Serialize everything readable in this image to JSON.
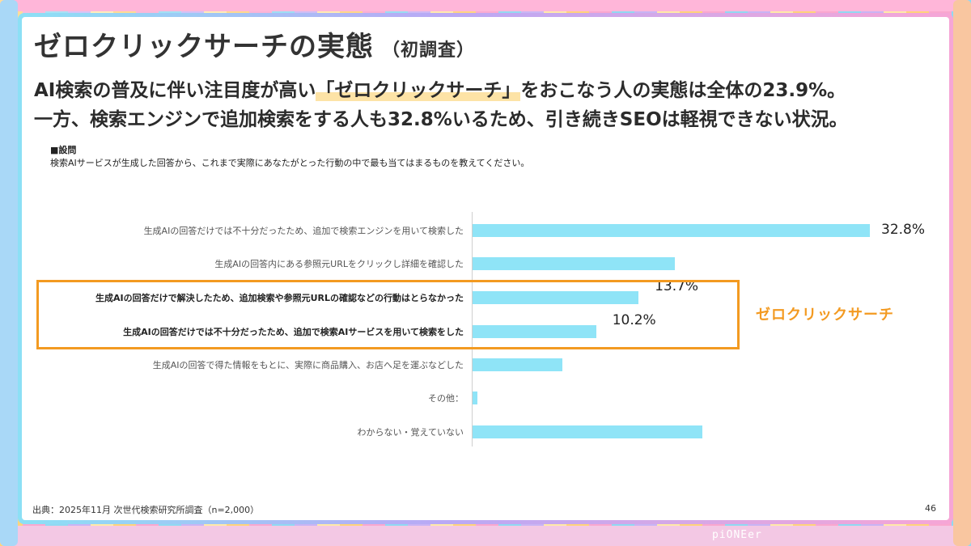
{
  "slide": {
    "title": "ゼロクリックサーチの実態",
    "title_sub": "（初調査）",
    "lead_line1_pre": "AI検索の普及に伴い注目度が高い",
    "lead_line1_highlight": "「ゼロクリックサーチ」",
    "lead_line1_post": "をおこなう人の実態は全体の23.9%。",
    "lead_line2": "一方、検索エンジンで追加検索をする人も32.8%いるため、引き続きSEOは軽視できない状況。",
    "question_heading": "■設問",
    "question_text": "検索AIサービスが生成した回答から、これまで実際にあなたがとった行動の中で最も当てはまるものを教えてください。",
    "source": "出典：2025年11月 次世代検索研究所調査（n=2,000）",
    "page_number": "46",
    "brand": "piONEer"
  },
  "colors": {
    "bar": "#8fe4f7",
    "highlight_box": "#f39a21",
    "highlight_marker": "#fde3a6"
  },
  "chart_data": {
    "type": "bar",
    "orientation": "horizontal",
    "categories": [
      "生成AIの回答だけでは不十分だったため、追加で検索エンジンを用いて検索した",
      "生成AIの回答内にある参照元URLをクリックし詳細を確認した",
      "生成AIの回答だけで解決したため、追加検索や参照元URLの確認などの行動はとらなかった",
      "生成AIの回答だけでは不十分だったため、追加で検索AIサービスを用いて検索をした",
      "生成AIの回答で得た情報をもとに、実際に商品購入、お店へ足を運ぶなどした",
      "その他：",
      "わからない・覚えていない"
    ],
    "values": [
      32.8,
      16.7,
      13.7,
      10.2,
      7.4,
      0.4,
      19.0
    ],
    "data_labels": [
      "32.8%",
      "",
      "13.7%",
      "10.2%",
      "",
      "",
      ""
    ],
    "bold_categories": [
      2,
      3
    ],
    "highlight_group": {
      "indices": [
        2,
        3
      ],
      "label": "ゼロクリックサーチ"
    },
    "xlim": [
      0,
      32.8
    ],
    "grid": false,
    "legend": "none"
  }
}
